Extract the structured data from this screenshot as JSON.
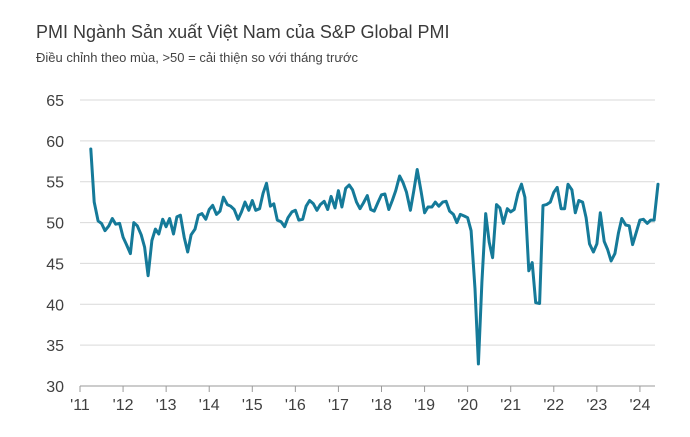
{
  "header": {
    "title": "PMI Ngành Sản xuất Việt Nam của S&P Global PMI",
    "subtitle": "Điều chỉnh theo mùa, >50 = cải thiện so với tháng trước"
  },
  "chart_data": {
    "type": "line",
    "title": "PMI Ngành Sản xuất Việt Nam của S&P Global PMI",
    "subtitle": "Điều chỉnh theo mùa, >50 = cải thiện so với tháng trước",
    "xlabel": "",
    "ylabel": "",
    "ylim": [
      30,
      65
    ],
    "yticks": [
      65,
      60,
      55,
      50,
      45,
      40,
      35,
      30
    ],
    "xlim": [
      2011.17,
      2024.55
    ],
    "xticks": [
      {
        "label": "'11",
        "x": 2011.0
      },
      {
        "label": "'12",
        "x": 2012.0
      },
      {
        "label": "'13",
        "x": 2013.0
      },
      {
        "label": "'14",
        "x": 2014.0
      },
      {
        "label": "'15",
        "x": 2015.0
      },
      {
        "label": "'16",
        "x": 2016.0
      },
      {
        "label": "'17",
        "x": 2017.0
      },
      {
        "label": "'18",
        "x": 2018.0
      },
      {
        "label": "'19",
        "x": 2019.0
      },
      {
        "label": "'20",
        "x": 2020.0
      },
      {
        "label": "'21",
        "x": 2021.0
      },
      {
        "label": "'22",
        "x": 2022.0
      },
      {
        "label": "'23",
        "x": 2023.0
      },
      {
        "label": "'24",
        "x": 2024.0
      }
    ],
    "grid": true,
    "line_color": "#157a99",
    "series": [
      {
        "name": "PMI",
        "points": [
          [
            2011.25,
            59.0
          ],
          [
            2011.33,
            52.5
          ],
          [
            2011.42,
            50.2
          ],
          [
            2011.5,
            49.9
          ],
          [
            2011.58,
            49.0
          ],
          [
            2011.67,
            49.6
          ],
          [
            2011.75,
            50.5
          ],
          [
            2011.83,
            49.8
          ],
          [
            2011.92,
            49.9
          ],
          [
            2012.0,
            48.2
          ],
          [
            2012.08,
            47.3
          ],
          [
            2012.17,
            46.2
          ],
          [
            2012.25,
            50.0
          ],
          [
            2012.33,
            49.6
          ],
          [
            2012.42,
            48.5
          ],
          [
            2012.5,
            47.0
          ],
          [
            2012.58,
            43.5
          ],
          [
            2012.67,
            47.8
          ],
          [
            2012.75,
            49.2
          ],
          [
            2012.83,
            48.6
          ],
          [
            2012.92,
            50.4
          ],
          [
            2013.0,
            49.5
          ],
          [
            2013.08,
            50.5
          ],
          [
            2013.17,
            48.6
          ],
          [
            2013.25,
            50.7
          ],
          [
            2013.33,
            50.9
          ],
          [
            2013.42,
            48.2
          ],
          [
            2013.5,
            46.4
          ],
          [
            2013.58,
            48.5
          ],
          [
            2013.67,
            49.2
          ],
          [
            2013.75,
            50.9
          ],
          [
            2013.83,
            51.1
          ],
          [
            2013.92,
            50.4
          ],
          [
            2014.0,
            51.6
          ],
          [
            2014.08,
            52.1
          ],
          [
            2014.17,
            51.0
          ],
          [
            2014.25,
            51.4
          ],
          [
            2014.33,
            53.1
          ],
          [
            2014.42,
            52.2
          ],
          [
            2014.5,
            52.0
          ],
          [
            2014.58,
            51.6
          ],
          [
            2014.67,
            50.4
          ],
          [
            2014.75,
            51.3
          ],
          [
            2014.83,
            52.5
          ],
          [
            2014.92,
            51.5
          ],
          [
            2015.0,
            52.7
          ],
          [
            2015.08,
            51.5
          ],
          [
            2015.17,
            51.7
          ],
          [
            2015.25,
            53.6
          ],
          [
            2015.33,
            54.8
          ],
          [
            2015.42,
            52.0
          ],
          [
            2015.5,
            52.3
          ],
          [
            2015.58,
            50.3
          ],
          [
            2015.67,
            50.1
          ],
          [
            2015.75,
            49.5
          ],
          [
            2015.83,
            50.6
          ],
          [
            2015.92,
            51.3
          ],
          [
            2016.0,
            51.5
          ],
          [
            2016.08,
            50.3
          ],
          [
            2016.17,
            50.4
          ],
          [
            2016.25,
            52.0
          ],
          [
            2016.33,
            52.7
          ],
          [
            2016.42,
            52.3
          ],
          [
            2016.5,
            51.5
          ],
          [
            2016.58,
            52.2
          ],
          [
            2016.67,
            52.6
          ],
          [
            2016.75,
            51.6
          ],
          [
            2016.83,
            53.2
          ],
          [
            2016.92,
            51.8
          ],
          [
            2017.0,
            53.9
          ],
          [
            2017.08,
            51.9
          ],
          [
            2017.17,
            54.2
          ],
          [
            2017.25,
            54.6
          ],
          [
            2017.33,
            54.0
          ],
          [
            2017.42,
            52.5
          ],
          [
            2017.5,
            51.7
          ],
          [
            2017.58,
            52.4
          ],
          [
            2017.67,
            53.3
          ],
          [
            2017.75,
            51.6
          ],
          [
            2017.83,
            51.4
          ],
          [
            2017.92,
            52.5
          ],
          [
            2018.0,
            53.4
          ],
          [
            2018.08,
            53.5
          ],
          [
            2018.17,
            51.6
          ],
          [
            2018.25,
            52.7
          ],
          [
            2018.33,
            53.9
          ],
          [
            2018.42,
            55.7
          ],
          [
            2018.5,
            54.9
          ],
          [
            2018.58,
            53.7
          ],
          [
            2018.67,
            51.5
          ],
          [
            2018.75,
            53.9
          ],
          [
            2018.83,
            56.5
          ],
          [
            2018.92,
            53.8
          ],
          [
            2019.0,
            51.2
          ],
          [
            2019.08,
            51.9
          ],
          [
            2019.17,
            51.9
          ],
          [
            2019.25,
            52.5
          ],
          [
            2019.33,
            52.0
          ],
          [
            2019.42,
            52.5
          ],
          [
            2019.5,
            52.6
          ],
          [
            2019.58,
            51.4
          ],
          [
            2019.67,
            51.0
          ],
          [
            2019.75,
            50.0
          ],
          [
            2019.83,
            51.0
          ],
          [
            2019.92,
            50.8
          ],
          [
            2020.0,
            50.6
          ],
          [
            2020.08,
            49.0
          ],
          [
            2020.17,
            41.9
          ],
          [
            2020.25,
            32.7
          ],
          [
            2020.33,
            42.7
          ],
          [
            2020.42,
            51.1
          ],
          [
            2020.5,
            47.6
          ],
          [
            2020.58,
            45.7
          ],
          [
            2020.67,
            52.2
          ],
          [
            2020.75,
            51.8
          ],
          [
            2020.83,
            49.9
          ],
          [
            2020.92,
            51.7
          ],
          [
            2021.0,
            51.3
          ],
          [
            2021.08,
            51.6
          ],
          [
            2021.17,
            53.6
          ],
          [
            2021.25,
            54.7
          ],
          [
            2021.33,
            53.1
          ],
          [
            2021.42,
            44.1
          ],
          [
            2021.5,
            45.1
          ],
          [
            2021.58,
            40.2
          ],
          [
            2021.67,
            40.1
          ],
          [
            2021.75,
            52.1
          ],
          [
            2021.83,
            52.2
          ],
          [
            2021.92,
            52.5
          ],
          [
            2022.0,
            53.7
          ],
          [
            2022.08,
            54.3
          ],
          [
            2022.17,
            51.7
          ],
          [
            2022.25,
            51.7
          ],
          [
            2022.33,
            54.7
          ],
          [
            2022.42,
            54.0
          ],
          [
            2022.5,
            51.2
          ],
          [
            2022.58,
            52.7
          ],
          [
            2022.67,
            52.5
          ],
          [
            2022.75,
            50.6
          ],
          [
            2022.83,
            47.4
          ],
          [
            2022.92,
            46.4
          ],
          [
            2023.0,
            47.4
          ],
          [
            2023.08,
            51.2
          ],
          [
            2023.17,
            47.7
          ],
          [
            2023.25,
            46.7
          ],
          [
            2023.33,
            45.3
          ],
          [
            2023.42,
            46.2
          ],
          [
            2023.5,
            48.7
          ],
          [
            2023.58,
            50.5
          ],
          [
            2023.67,
            49.7
          ],
          [
            2023.75,
            49.6
          ],
          [
            2023.83,
            47.3
          ],
          [
            2023.92,
            48.9
          ],
          [
            2024.0,
            50.3
          ],
          [
            2024.08,
            50.4
          ],
          [
            2024.17,
            49.9
          ],
          [
            2024.25,
            50.3
          ],
          [
            2024.33,
            50.3
          ],
          [
            2024.42,
            54.7
          ]
        ]
      }
    ]
  }
}
